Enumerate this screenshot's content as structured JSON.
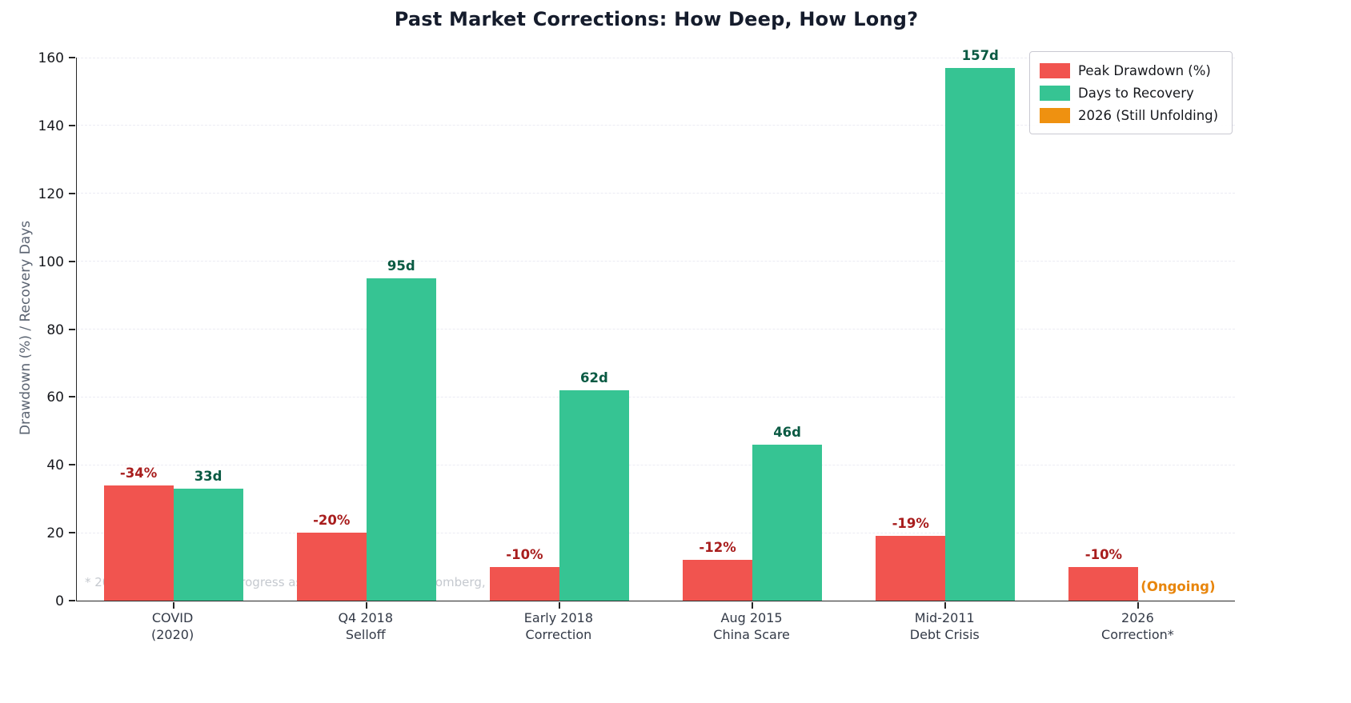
{
  "title": "Past Market Corrections: How Deep, How Long?",
  "ylabel": "Drawdown (%) / Recovery Days",
  "footnote": "* 2026 correction still in progress as of Apr 2. Sources: Bloomberg, Morningstar, BLS.",
  "legend": [
    {
      "label": "Peak Drawdown (%)",
      "color": "#f1544f"
    },
    {
      "label": "Days to Recovery",
      "color": "#36c493"
    },
    {
      "label": "2026 (Still Unfolding)",
      "color": "#ef9110"
    }
  ],
  "chart_data": {
    "type": "bar",
    "categories": [
      [
        "COVID",
        "(2020)"
      ],
      [
        "Q4 2018",
        "Selloff"
      ],
      [
        "Early 2018",
        "Correction"
      ],
      [
        "Aug 2015",
        "China Scare"
      ],
      [
        "Mid-2011",
        "Debt Crisis"
      ],
      [
        "2026",
        "Correction*"
      ]
    ],
    "series": [
      {
        "name": "Peak Drawdown (%)",
        "color": "#f1544f",
        "values": [
          34,
          20,
          10,
          12,
          19,
          10
        ],
        "labels": [
          "-34%",
          "-20%",
          "-10%",
          "-12%",
          "-19%",
          "-10%"
        ],
        "label_color": "#a81d1d"
      },
      {
        "name": "Days to Recovery",
        "color": "#36c493",
        "values": [
          33,
          95,
          62,
          46,
          157,
          null
        ],
        "labels": [
          "33d",
          "95d",
          "62d",
          "46d",
          "157d",
          null
        ],
        "label_color": "#0a5a43"
      }
    ],
    "ongoing_label": "(Ongoing)",
    "ongoing_color": "#e8860d",
    "ylabel": "Drawdown (%) / Recovery Days",
    "ylim": [
      0,
      160
    ],
    "yticks": [
      0,
      20,
      40,
      60,
      80,
      100,
      120,
      140,
      160
    ],
    "grid": "dashed-horizontal",
    "legend_position": "upper-right"
  }
}
